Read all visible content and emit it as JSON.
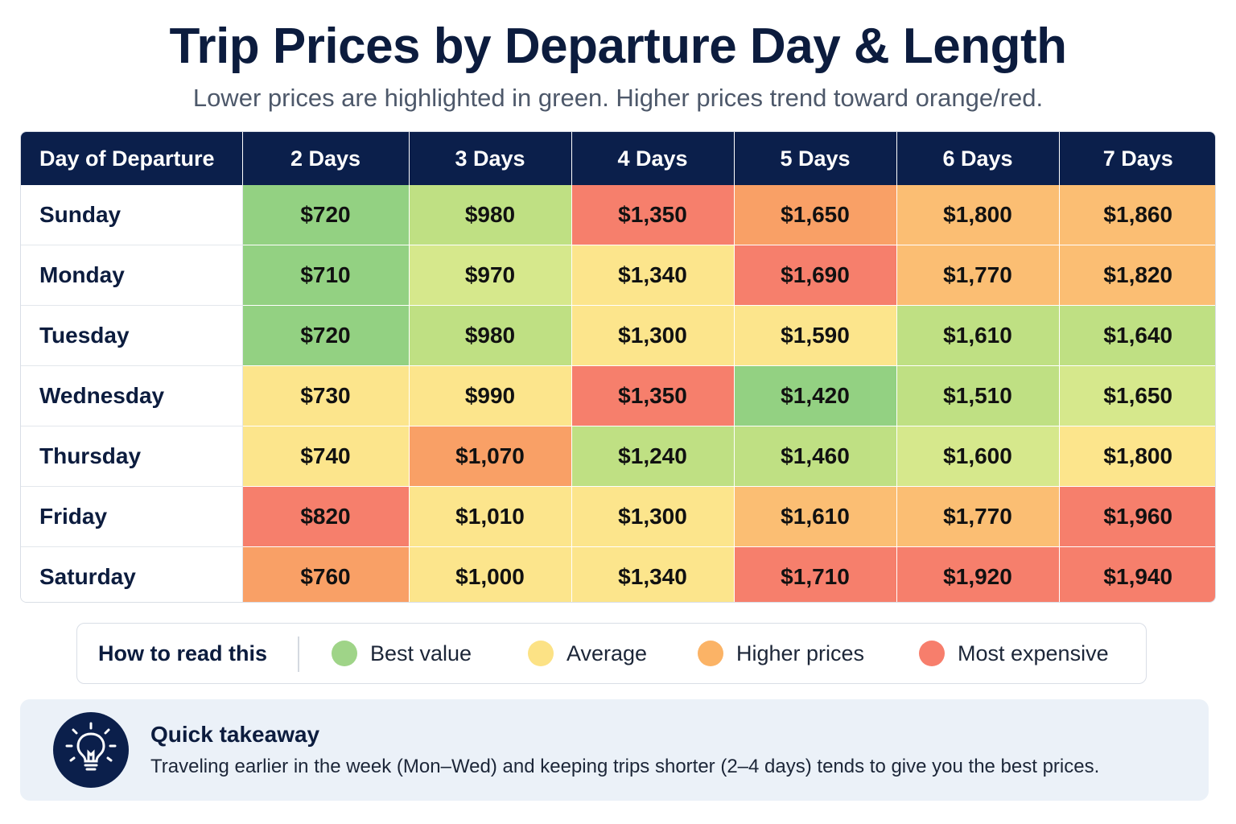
{
  "title": "Trip Prices by Departure Day & Length",
  "subtitle": "Lower prices are highlighted in green. Higher prices trend toward orange/red.",
  "chart_data": {
    "type": "heatmap",
    "title": "Trip Prices by Departure Day & Length",
    "corner_header": "Day of Departure",
    "columns": [
      "2 Days",
      "3 Days",
      "4 Days",
      "5 Days",
      "6 Days",
      "7 Days"
    ],
    "rows": [
      "Sunday",
      "Monday",
      "Tuesday",
      "Wednesday",
      "Thursday",
      "Friday",
      "Saturday"
    ],
    "values": [
      [
        720,
        980,
        1350,
        1650,
        1800,
        1860
      ],
      [
        710,
        970,
        1340,
        1690,
        1770,
        1820
      ],
      [
        720,
        980,
        1300,
        1590,
        1610,
        1640
      ],
      [
        730,
        990,
        1350,
        1420,
        1510,
        1650
      ],
      [
        740,
        1070,
        1240,
        1460,
        1600,
        1800
      ],
      [
        820,
        1010,
        1300,
        1610,
        1770,
        1960
      ],
      [
        760,
        1000,
        1340,
        1710,
        1920,
        1940
      ]
    ],
    "labels": [
      [
        "$720",
        "$980",
        "$1,350",
        "$1,650",
        "$1,800",
        "$1,860"
      ],
      [
        "$710",
        "$970",
        "$1,340",
        "$1,690",
        "$1,770",
        "$1,820"
      ],
      [
        "$720",
        "$980",
        "$1,300",
        "$1,590",
        "$1,610",
        "$1,640"
      ],
      [
        "$730",
        "$990",
        "$1,350",
        "$1,420",
        "$1,510",
        "$1,650"
      ],
      [
        "$740",
        "$1,070",
        "$1,240",
        "$1,460",
        "$1,600",
        "$1,800"
      ],
      [
        "$820",
        "$1,010",
        "$1,300",
        "$1,610",
        "$1,770",
        "$1,960"
      ],
      [
        "$760",
        "$1,000",
        "$1,340",
        "$1,710",
        "$1,920",
        "$1,940"
      ]
    ],
    "categories": [
      [
        "green-1",
        "green-2",
        "red",
        "orange",
        "orange-light",
        "orange-light"
      ],
      [
        "green-1",
        "green-3",
        "yellow",
        "red",
        "orange-light",
        "orange-light"
      ],
      [
        "green-1",
        "green-2",
        "yellow",
        "yellow",
        "green-2",
        "green-2"
      ],
      [
        "yellow",
        "yellow",
        "red",
        "green-1",
        "green-2",
        "green-3"
      ],
      [
        "yellow",
        "orange",
        "green-2",
        "green-2",
        "green-3",
        "yellow"
      ],
      [
        "red",
        "yellow",
        "yellow",
        "orange-light",
        "orange-light",
        "red"
      ],
      [
        "orange",
        "yellow",
        "yellow",
        "red",
        "red",
        "red"
      ]
    ],
    "palette": {
      "green-1": "#93d182",
      "green-2": "#bfe083",
      "green-3": "#d6e88c",
      "yellow": "#fce58c",
      "orange-light": "#fbbe73",
      "orange": "#f9a066",
      "red": "#f67f6c"
    }
  },
  "legend": {
    "title": "How to read this",
    "items": [
      {
        "label": "Best value",
        "color": "#9fd488"
      },
      {
        "label": "Average",
        "color": "#fce285"
      },
      {
        "label": "Higher prices",
        "color": "#fbb366"
      },
      {
        "label": "Most expensive",
        "color": "#f77e6c"
      }
    ]
  },
  "takeaway": {
    "icon": "lightbulb-icon",
    "title": "Quick takeaway",
    "text": "Traveling earlier in the week (Mon–Wed) and keeping trips shorter (2–4 days) tends to give you the best prices."
  }
}
